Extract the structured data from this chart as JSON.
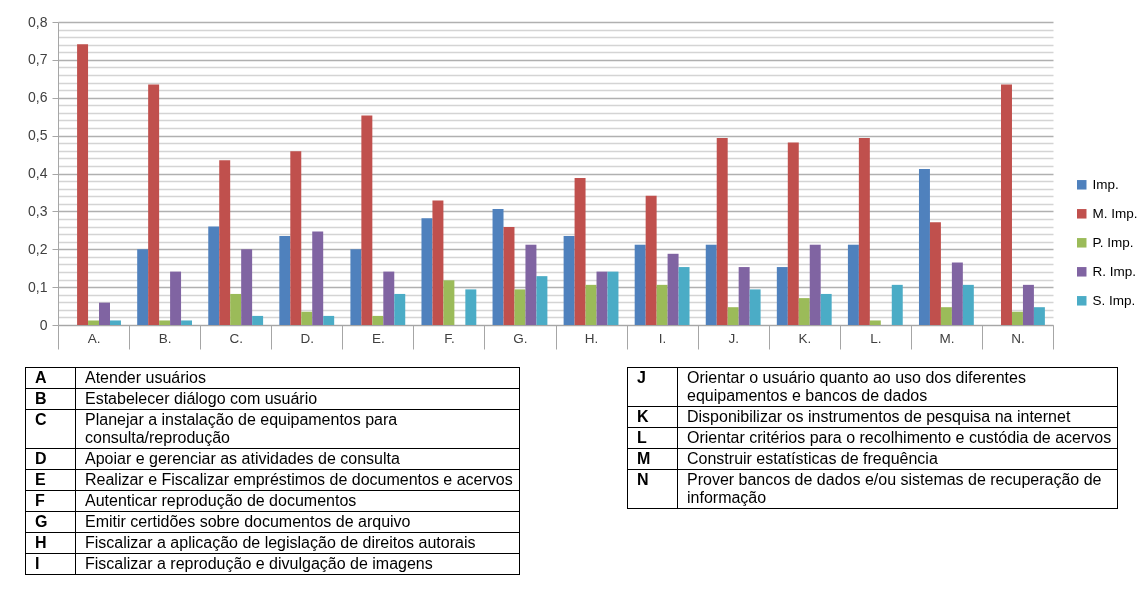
{
  "chart_data": {
    "type": "bar",
    "categories": [
      "A.",
      "B.",
      "C.",
      "D.",
      "E.",
      "F.",
      "G.",
      "H.",
      "I.",
      "J.",
      "K.",
      "L.",
      "M.",
      "N."
    ],
    "series": [
      {
        "name": "Imp.",
        "color": "#4f81bd",
        "values": [
          null,
          0.2,
          0.26,
          0.235,
          0.2,
          0.282,
          0.306,
          0.235,
          0.212,
          0.212,
          0.153,
          0.212,
          0.412,
          null
        ]
      },
      {
        "name": "M. Imp.",
        "color": "#c0504d",
        "values": [
          0.741,
          0.635,
          0.435,
          0.459,
          0.553,
          0.329,
          0.259,
          0.388,
          0.341,
          0.494,
          0.482,
          0.494,
          0.271,
          0.635
        ]
      },
      {
        "name": "P. Imp.",
        "color": "#9bbb59",
        "values": [
          0.012,
          0.012,
          0.082,
          0.035,
          0.024,
          0.118,
          0.094,
          0.106,
          0.106,
          0.047,
          0.071,
          0.012,
          0.047,
          0.035
        ]
      },
      {
        "name": "R. Imp.",
        "color": "#8064a2",
        "values": [
          0.059,
          0.141,
          0.2,
          0.247,
          0.141,
          null,
          0.212,
          0.141,
          0.188,
          0.153,
          0.212,
          null,
          0.165,
          0.106
        ]
      },
      {
        "name": "S. Imp.",
        "color": "#4bacc6",
        "values": [
          0.012,
          0.012,
          0.024,
          0.024,
          0.082,
          0.094,
          0.129,
          0.141,
          0.153,
          0.094,
          0.082,
          0.106,
          0.106,
          0.047
        ]
      }
    ],
    "ylim": [
      0,
      0.8
    ],
    "yticks": [
      0,
      {
        "value": 0.02,
        "label": null
      },
      {
        "value": 0.04,
        "label": null
      },
      {
        "value": 0.06,
        "label": null
      },
      {
        "value": 0.08,
        "label": null
      },
      {
        "value": 0.1,
        "label": "0,1"
      },
      {
        "value": 0.12,
        "label": null
      },
      {
        "value": 0.14,
        "label": null
      },
      {
        "value": 0.16,
        "label": null
      },
      {
        "value": 0.18,
        "label": null
      },
      {
        "value": 0.2,
        "label": "0,2"
      },
      {
        "value": 0.22,
        "label": null
      },
      {
        "value": 0.24,
        "label": null
      },
      {
        "value": 0.26,
        "label": null
      },
      {
        "value": 0.28,
        "label": null
      },
      {
        "value": 0.3,
        "label": "0,3"
      },
      {
        "value": 0.32,
        "label": null
      },
      {
        "value": 0.34,
        "label": null
      },
      {
        "value": 0.36,
        "label": null
      },
      {
        "value": 0.38,
        "label": null
      },
      {
        "value": 0.4,
        "label": "0,4"
      },
      {
        "value": 0.42,
        "label": null
      },
      {
        "value": 0.44,
        "label": null
      },
      {
        "value": 0.46,
        "label": null
      },
      {
        "value": 0.48,
        "label": null
      },
      {
        "value": 0.5,
        "label": "0,5"
      },
      {
        "value": 0.52,
        "label": null
      },
      {
        "value": 0.54,
        "label": null
      },
      {
        "value": 0.56,
        "label": null
      },
      {
        "value": 0.58,
        "label": null
      },
      {
        "value": 0.6,
        "label": "0,6"
      },
      {
        "value": 0.62,
        "label": null
      },
      {
        "value": 0.64,
        "label": null
      },
      {
        "value": 0.66,
        "label": null
      },
      {
        "value": 0.68,
        "label": null
      },
      {
        "value": 0.7,
        "label": "0,7"
      },
      {
        "value": 0.72,
        "label": null
      },
      {
        "value": 0.74,
        "label": null
      },
      {
        "value": 0.76,
        "label": null
      },
      {
        "value": 0.78,
        "label": null
      },
      {
        "value": 0.8,
        "label": "0,8"
      }
    ],
    "grid": "y",
    "legend": "right",
    "annotations": [
      "A",
      "Atender usuários",
      "B",
      "Estabelecer diálogo com usuário",
      "C",
      "Planejar a instalação de equipamentos para consulta/reprodução",
      "D",
      "Apoiar e gerenciar as atividades de consulta",
      "E",
      "Realizar e Fiscalizar empréstimos  de documentos e acervos",
      "F",
      "Autenticar reprodução de documentos",
      "G",
      "Emitir certidões sobre documentos de arquivo",
      "H",
      "Fiscalizar a aplicação de legislação de direitos autorais",
      "I",
      "Fiscalizar a reprodução e divulgação de imagens",
      "J",
      "Orientar o usuário quanto ao uso dos diferentes equipamentos e bancos de dados",
      "K",
      "Disponibilizar os instrumentos de pesquisa na internet",
      "L",
      "Orientar critérios para o recolhimento e custódia de acervos",
      "M",
      "Construir estatísticas  de frequência",
      "N",
      "Prover bancos de dados e/ou sistemas de recuperação de informação"
    ]
  }
}
